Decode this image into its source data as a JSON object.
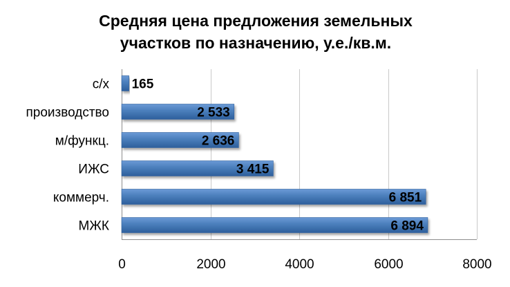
{
  "chart_data": {
    "type": "bar",
    "orientation": "horizontal",
    "title": [
      "Средняя цена предложения земельных",
      "участков по назначению, у.е./кв.м."
    ],
    "categories": [
      "с/х",
      "производство",
      "м/функц.",
      "ИЖС",
      "коммерч.",
      "МЖК"
    ],
    "values": [
      165,
      2533,
      2636,
      3415,
      6851,
      6894
    ],
    "value_labels": [
      "165",
      "2 533",
      "2 636",
      "3 415",
      "6 851",
      "6 894"
    ],
    "xticks": [
      "0",
      "2000",
      "4000",
      "6000",
      "8000"
    ],
    "xlim": [
      0,
      8000
    ],
    "grid": true,
    "legend": "none",
    "bar_color": "#4a7ebb",
    "bar_color_light": "#6b9ad6",
    "bar_color_dark": "#2e5f9c",
    "grid_color": "#c9c9c9",
    "text_color": "#000000"
  }
}
